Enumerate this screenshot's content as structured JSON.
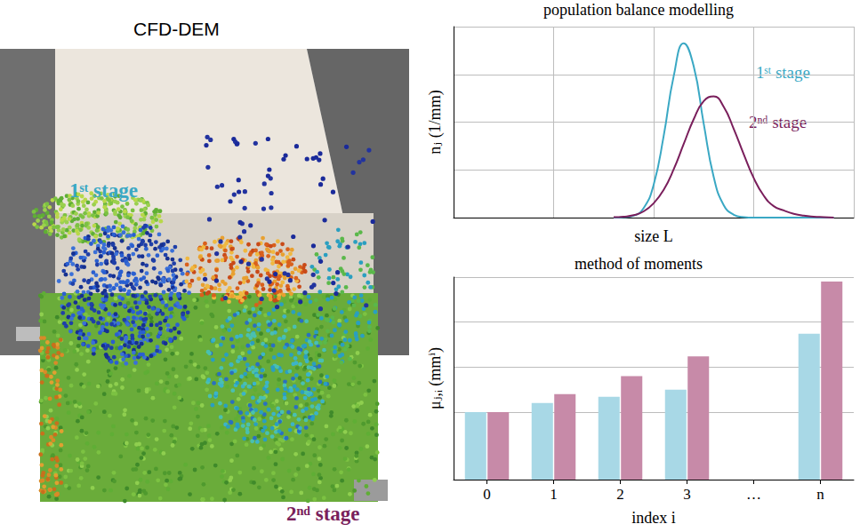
{
  "simulation": {
    "title": "CFD-DEM",
    "labels": [
      "1ˢᵗ stage",
      "2ⁿᵈ stage"
    ],
    "colors": [
      "#3aa8c4",
      "#7a1f5c"
    ]
  },
  "chart_data": [
    {
      "type": "line",
      "title": "population balance modelling",
      "xlabel": "size L",
      "ylabel": "nⱼ (1/mm)",
      "x": [
        1.6,
        1.7,
        1.8,
        1.9,
        2.0,
        2.1,
        2.2,
        2.3,
        2.4,
        2.5,
        2.6,
        2.7,
        2.8,
        2.9,
        3.0,
        3.1,
        3.2,
        3.3,
        3.4,
        3.5,
        3.6,
        3.7,
        3.8
      ],
      "series": [
        {
          "name": "1ˢᵗ stage",
          "color": "#3aa8c4",
          "values": [
            0,
            0.01,
            0.04,
            0.2,
            0.69,
            1.71,
            2.96,
            3.65,
            3.17,
            1.97,
            0.85,
            0.26,
            0.06,
            0.01,
            0,
            0,
            0,
            0,
            0,
            0,
            0,
            0,
            0
          ]
        },
        {
          "name": "2ⁿᵈ stage",
          "color": "#7a1f5c",
          "values": [
            0.01,
            0.02,
            0.05,
            0.13,
            0.3,
            0.58,
            1.01,
            1.54,
            2.06,
            2.44,
            2.54,
            2.32,
            1.86,
            1.33,
            0.83,
            0.46,
            0.24,
            0.15,
            0.08,
            0.04,
            0.02,
            0.01,
            0
          ]
        }
      ],
      "xlim": [
        0,
        4
      ],
      "xticks": [
        0,
        1,
        2,
        3,
        4
      ],
      "ylim": [
        0,
        4
      ],
      "yticks": [
        0,
        1,
        2,
        3,
        4
      ],
      "grid": true,
      "tick_labels": false
    },
    {
      "type": "bar",
      "title": "method of moments",
      "xlabel": "index i",
      "ylabel": "μⱼ,ᵢ (mmⁱ)",
      "categories": [
        "0",
        "1",
        "2",
        "3",
        "…",
        "n"
      ],
      "series": [
        {
          "color": "#a8d8e6",
          "values": [
            1.5,
            1.7,
            1.84,
            2.0,
            null,
            3.24
          ]
        },
        {
          "color": "#c78aa8",
          "values": [
            1.5,
            1.9,
            2.3,
            2.74,
            null,
            4.4
          ]
        }
      ],
      "ylim": [
        0,
        4.5
      ],
      "yticks": [
        0,
        1.5,
        2.5,
        3.5,
        4.5
      ],
      "grid": true,
      "tick_labels": "x"
    }
  ]
}
